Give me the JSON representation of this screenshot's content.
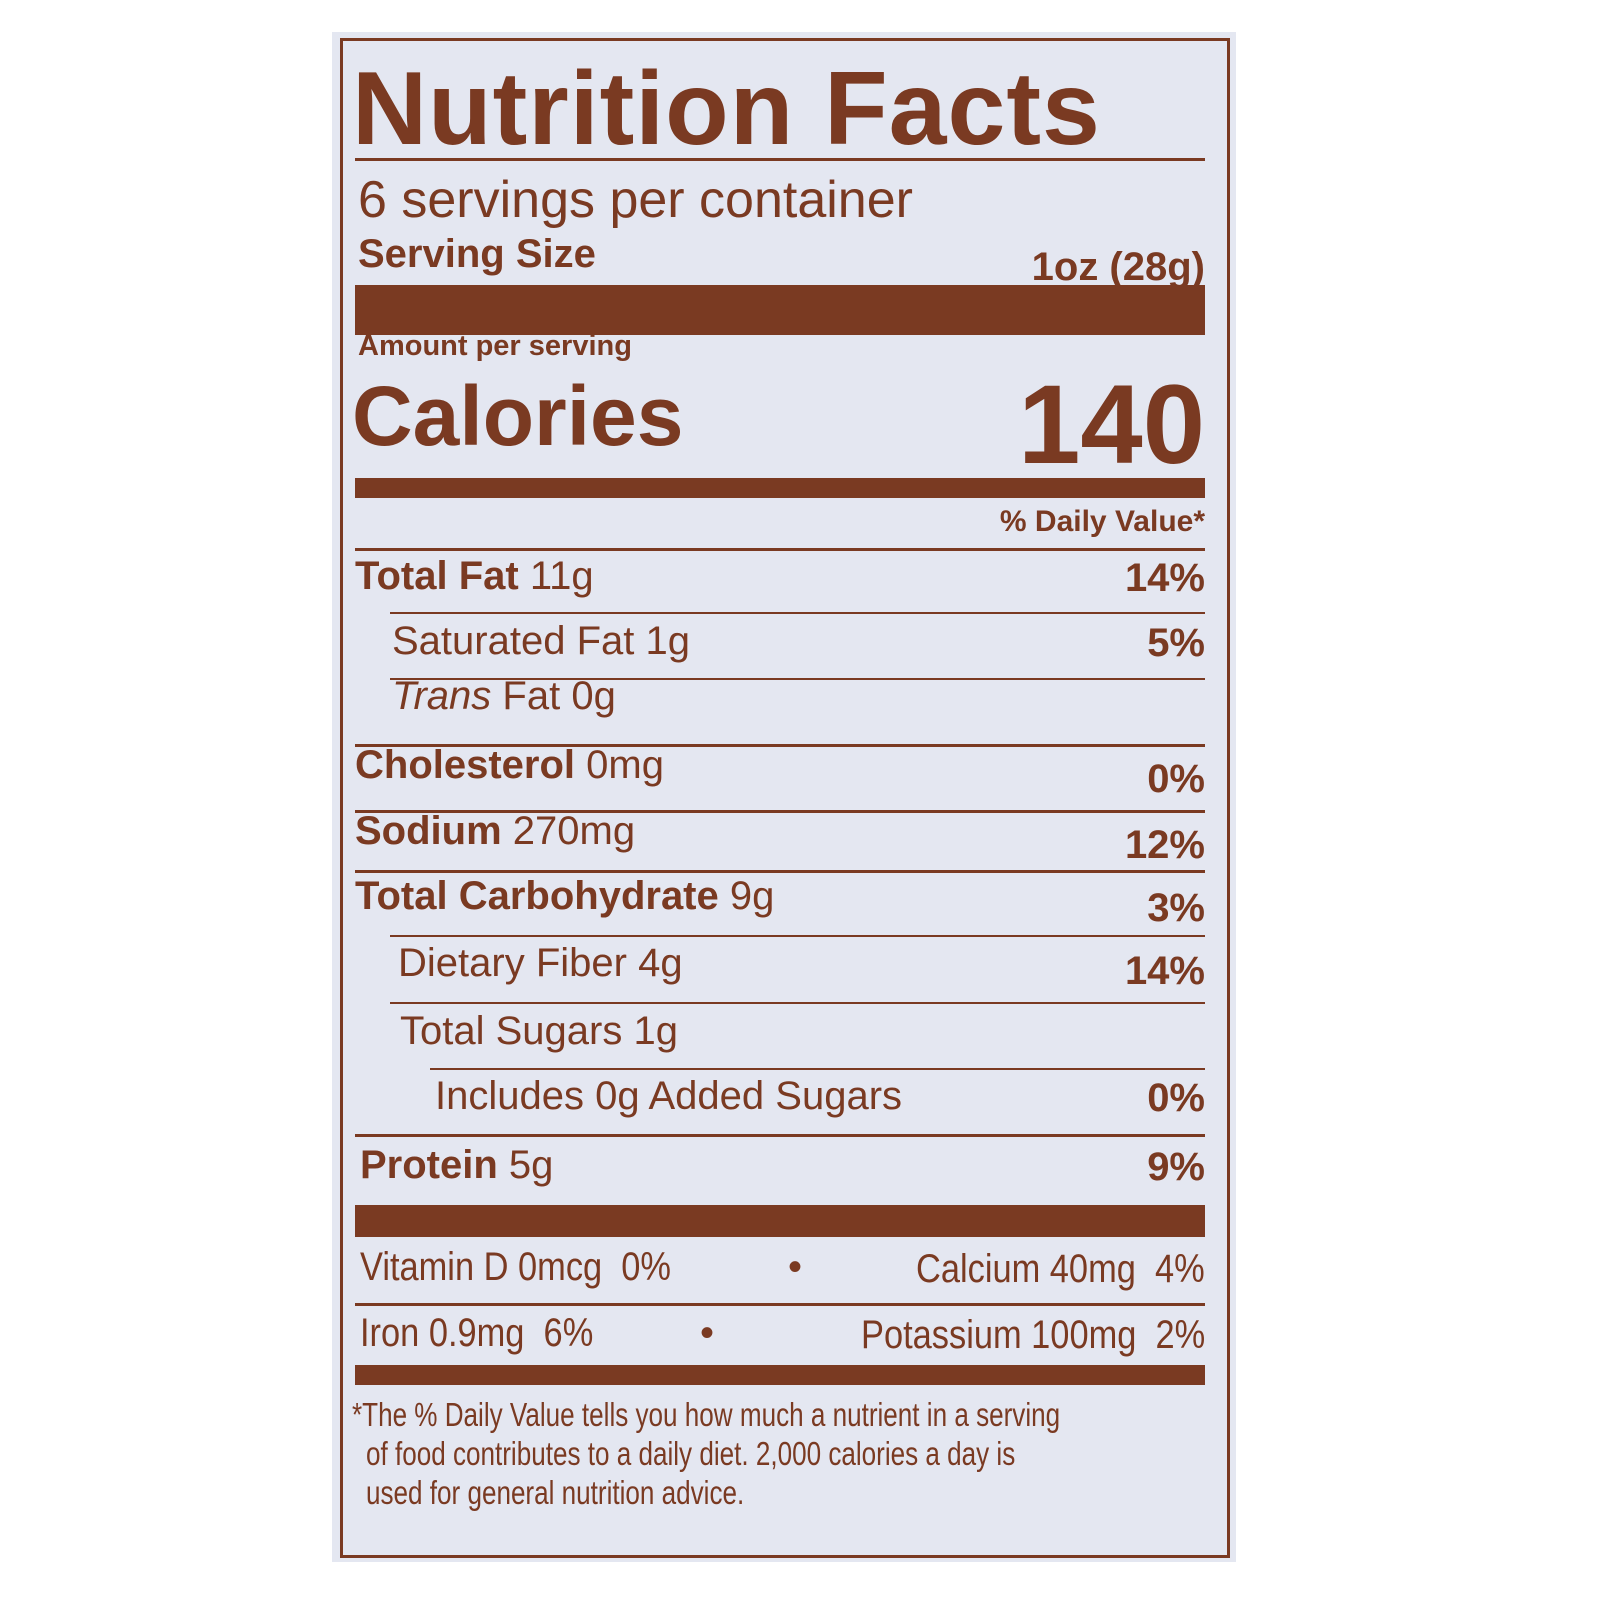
{
  "title": "Nutrition Facts",
  "servings_per_container": "6 servings per container",
  "serving_size": {
    "label": "Serving Size",
    "value": "1oz (28g)"
  },
  "amount_per_serving": "Amount per serving",
  "calories": {
    "label": "Calories",
    "value": "140"
  },
  "daily_value_header": "% Daily Value*",
  "nutrients": [
    {
      "name": "Total Fat",
      "amount": "11g",
      "dv": "14%"
    },
    {
      "name": "Saturated Fat",
      "amount": "1g",
      "dv": "5%"
    },
    {
      "name": "Trans",
      "name_rest": "Fat",
      "amount": "0g",
      "dv": ""
    },
    {
      "name": "Cholesterol",
      "amount": "0mg",
      "dv": "0%"
    },
    {
      "name": "Sodium",
      "amount": "270mg",
      "dv": "12%"
    },
    {
      "name": "Total Carbohydrate",
      "amount": "9g",
      "dv": "3%"
    },
    {
      "name": "Dietary Fiber",
      "amount": "4g",
      "dv": "14%"
    },
    {
      "name": "Total Sugars",
      "amount": "1g",
      "dv": ""
    },
    {
      "name": "Includes 0g Added Sugars",
      "amount": "",
      "dv": "0%"
    },
    {
      "name": "Protein",
      "amount": "5g",
      "dv": "9%"
    }
  ],
  "vitamins": [
    {
      "left": "Vitamin D 0mcg  0%",
      "right": "Calcium 40mg  4%"
    },
    {
      "left": "Iron 0.9mg  6%",
      "right": "Potassium 100mg  2%"
    }
  ],
  "bullet": "•",
  "footnote": [
    "*The % Daily Value tells you how much a nutrient in a serving",
    "of food contributes to a daily diet. 2,000 calories a day is",
    "used for general nutrition advice."
  ],
  "colors": {
    "ink": "#7a3a22",
    "label_background": "#e4e7f1"
  }
}
